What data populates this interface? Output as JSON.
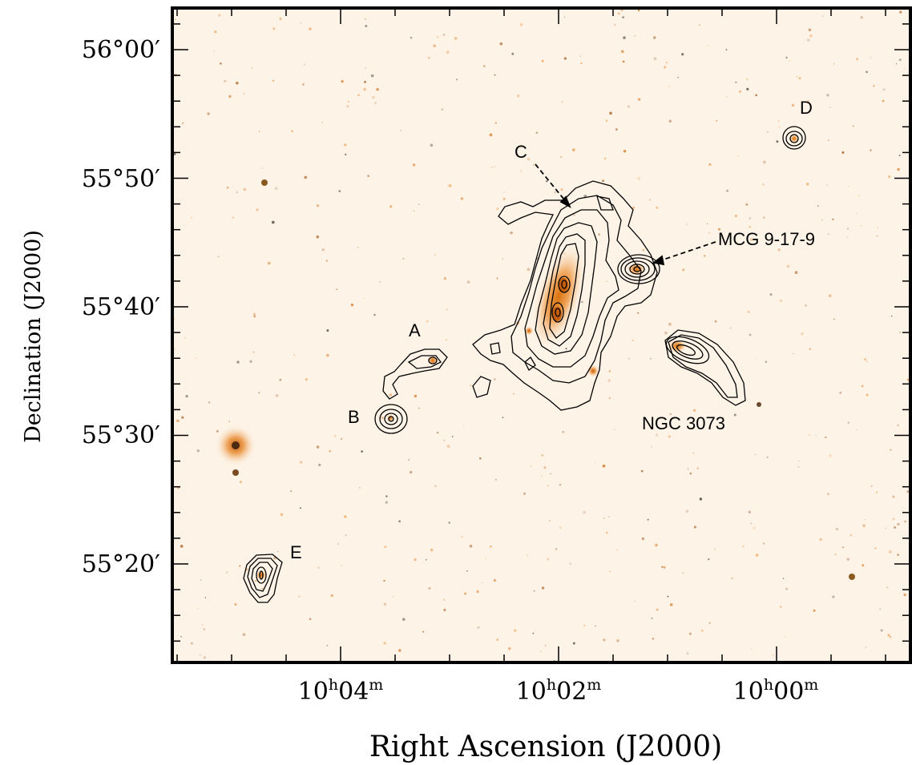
{
  "chart_data": {
    "type": "contour",
    "xlabel": "Right Ascension (J2000)",
    "ylabel": "Declination (J2000)",
    "x_ticks": [
      {
        "h": "10",
        "m": "04"
      },
      {
        "h": "10",
        "m": "02"
      },
      {
        "h": "10",
        "m": "00"
      }
    ],
    "y_ticks": [
      "56°00′",
      "55°50′",
      "55°40′",
      "55°30′",
      "55°20′"
    ],
    "ra_unit_h": "h",
    "ra_unit_m": "m",
    "annotations": [
      "A",
      "B",
      "C",
      "D",
      "E",
      "MCG 9-17-9",
      "NGC 3073"
    ],
    "background": "optical image (orange colormap) with HI column density contours",
    "colors": {
      "background": "#fdf3e7",
      "contour": "#000000",
      "star": "#e07a1a"
    }
  }
}
